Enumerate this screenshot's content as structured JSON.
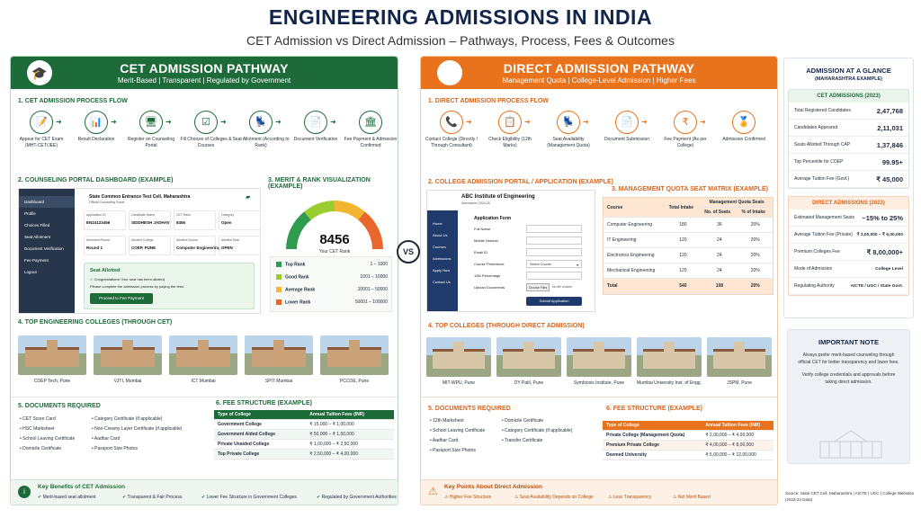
{
  "title": "ENGINEERING ADMISSIONS IN INDIA",
  "subtitle": "CET Admission vs Direct Admission – Pathways, Process, Fees & Outcomes",
  "vs": "VS",
  "cet": {
    "header_title": "CET ADMISSION PATHWAY",
    "header_sub": "Merit-Based | Transparent | Regulated by Government",
    "process_title": "1. CET ADMISSION PROCESS FLOW",
    "steps": [
      {
        "icon": "exam-icon",
        "label": "Appear for CET Exam (MHT-CET/JEE)"
      },
      {
        "icon": "chart-icon",
        "label": "Result Declaration"
      },
      {
        "icon": "monitor-icon",
        "label": "Register on Counseling Portal"
      },
      {
        "icon": "choices-icon",
        "label": "Fill Choices of Colleges & Courses"
      },
      {
        "icon": "seat-icon",
        "label": "Seat Allotment (According to Rank)"
      },
      {
        "icon": "document-icon",
        "label": "Document Verification"
      },
      {
        "icon": "bank-icon",
        "label": "Fee Payment & Admission Confirmed"
      }
    ],
    "dashboard_title": "2. COUNSELING PORTAL DASHBOARD (EXAMPLE)",
    "dashboard": {
      "org": "State Common Entrance Test Cell, Maharashtra",
      "org_sub": "Official Counseling Portal",
      "menu": [
        "Dashboard",
        "Profile",
        "Choices Filled",
        "Seat Allotment",
        "Document Verification",
        "Fee Payment",
        "Logout"
      ],
      "fields": [
        {
          "label": "Application ID",
          "value": "EN24123456"
        },
        {
          "label": "Candidate Name",
          "value": "SIDDHESH JADHAV"
        },
        {
          "label": "CET Rank",
          "value": "8456"
        },
        {
          "label": "Category",
          "value": "Open"
        },
        {
          "label": "Allotment Round",
          "value": "Round 1"
        },
        {
          "label": "Allotted College",
          "value": "COEP, PUNE"
        },
        {
          "label": "Allotted Course",
          "value": "Computer Engineering"
        },
        {
          "label": "Allotted Seat",
          "value": "OPEN"
        }
      ],
      "seat_title": "Seat Allotted",
      "seat_msg1": "Congratulations! Your seat has been allotted.",
      "seat_msg2": "Please complete the admission process by paying the fees.",
      "button": "Proceed to Fee Payment"
    },
    "merit_title": "3. MERIT & RANK VISUALIZATION (EXAMPLE)",
    "gauge": {
      "value": "8456",
      "label": "Your CET Rank",
      "min": "1",
      "max": "100000",
      "fraction": 0.08
    },
    "ranks": [
      {
        "name": "Top Rank",
        "range": "1 – 1000",
        "color": "#2e9b4e"
      },
      {
        "name": "Good Rank",
        "range": "1001 – 10000",
        "color": "#9acd32"
      },
      {
        "name": "Average Rank",
        "range": "10001 – 50000",
        "color": "#f2b632"
      },
      {
        "name": "Lower Rank",
        "range": "50001 – 100000",
        "color": "#e9662c"
      }
    ],
    "colleges_title": "4. TOP ENGINEERING COLLEGES (THROUGH CET)",
    "colleges": [
      "COEP Tech, Pune",
      "VJTI, Mumbai",
      "ICT Mumbai",
      "SPIT Mumbai",
      "PCCOE, Pune"
    ],
    "docs_title": "5. DOCUMENTS REQUIRED",
    "docs_left": [
      "CET Score Card",
      "HSC Marksheet",
      "School Leaving Certificate",
      "Domicile Certificate"
    ],
    "docs_right": [
      "Category Certificate (if applicable)",
      "Non-Creamy Layer Certificate (if applicable)",
      "Aadhar Card",
      "Passport Size Photos"
    ],
    "fee_title": "6. FEE STRUCTURE (EXAMPLE)",
    "fee_head": [
      "Type of College",
      "Annual Tuition Fees (INR)"
    ],
    "fees": [
      [
        "Government College",
        "₹ 15,000 – ₹ 1,00,000"
      ],
      [
        "Government Aided College",
        "₹ 50,000 – ₹ 1,50,000"
      ],
      [
        "Private Unaided College",
        "₹ 1,00,000 – ₹ 2,50,000"
      ],
      [
        "Top Private College",
        "₹ 2,50,000 – ₹ 4,00,000"
      ]
    ],
    "benefits_title": "Key Benefits of CET Admission",
    "benefits": [
      "Merit-based seat allotment",
      "Transparent & Fair Process",
      "Lower Fee Structure in Government Colleges",
      "Regulated by Government Authorities"
    ]
  },
  "direct": {
    "header_title": "DIRECT ADMISSION PATHWAY",
    "header_sub": "Management Quota | College-Level Admission | Higher Fees",
    "process_title": "1. DIRECT ADMISSION PROCESS FLOW",
    "steps": [
      {
        "icon": "phone-icon",
        "label": "Contact College (Directly / Through Consultant)"
      },
      {
        "icon": "clipboard-icon",
        "label": "Check Eligibility (12th Marks)"
      },
      {
        "icon": "seat-icon",
        "label": "Seat Availability (Management Quota)"
      },
      {
        "icon": "document-icon",
        "label": "Document Submission"
      },
      {
        "icon": "rupee-icon",
        "label": "Fee Payment (As per College)"
      },
      {
        "icon": "badge-icon",
        "label": "Admission Confirmed"
      }
    ],
    "portal_title": "2. COLLEGE ADMISSION PORTAL / APPLICATION (EXAMPLE)",
    "portal": {
      "college": "ABC Institute of Engineering",
      "session": "Admissions 2024-25",
      "menu": [
        "Home",
        "About Us",
        "Courses",
        "Admissions",
        "Apply Now",
        "Contact Us"
      ],
      "form_title": "Application Form",
      "fields": [
        "Full Name",
        "Mobile Number",
        "Email ID",
        "Course Preference",
        "12th Percentage",
        "Upload Documents"
      ],
      "select": "Select Course",
      "choose": "Choose Files",
      "nofile": "No file chosen",
      "submit": "Submit Application"
    },
    "matrix_title": "3. MANAGEMENT QUOTA SEAT MATRIX (EXAMPLE)",
    "matrix_head": [
      "Course",
      "Total Intake",
      "Management Quota Seats",
      "No. of Seats",
      "% of Intake"
    ],
    "matrix": [
      [
        "Computer Engineering",
        "180",
        "36",
        "20%"
      ],
      [
        "IT Engineering",
        "120",
        "24",
        "20%"
      ],
      [
        "Electronics Engineering",
        "120",
        "24",
        "20%"
      ],
      [
        "Mechanical Engineering",
        "120",
        "24",
        "20%"
      ],
      [
        "Total",
        "540",
        "108",
        "20%"
      ]
    ],
    "colleges_title": "4. TOP COLLEGES (THROUGH DIRECT ADMISSION)",
    "colleges": [
      "MIT-WPU, Pune",
      "DY Patil, Pune",
      "Symbiosis Institute, Pune",
      "Mumbai University Inst. of Engg.",
      "JSPM, Pune"
    ],
    "docs_title": "5. DOCUMENTS REQUIRED",
    "docs_left": [
      "12th Marksheet",
      "School Leaving Certificate",
      "Aadhar Card",
      "Passport Size Photos"
    ],
    "docs_right": [
      "Domicile Certificate",
      "Category Certificate (if applicable)",
      "Transfer Certificate"
    ],
    "fee_title": "6. FEE STRUCTURE (EXAMPLE)",
    "fee_head": [
      "Type of College",
      "Annual Tuition Fees (INR)"
    ],
    "fees": [
      [
        "Private College (Management Quota)",
        "₹ 2,00,000 – ₹ 4,00,000"
      ],
      [
        "Premium Private College",
        "₹ 4,00,000 – ₹ 8,00,000"
      ],
      [
        "Deemed University",
        "₹ 5,00,000 – ₹ 12,00,000"
      ]
    ],
    "points_title": "Key Points About Direct Admission",
    "points": [
      "Higher Fee Structure",
      "Seat Availability Depends on College",
      "Less Transparency",
      "Not Merit Based"
    ]
  },
  "glance": {
    "title": "ADMISSION AT A GLANCE",
    "sub": "(MAHARASHTRA EXAMPLE)",
    "cet_title": "CET ADMISSIONS (2023)",
    "cet_rows": [
      [
        "Total Registered Candidates",
        "2,47,768"
      ],
      [
        "Candidates Appeared",
        "2,11,031"
      ],
      [
        "Seats Allotted Through CAP",
        "1,37,846"
      ],
      [
        "Top Percentile for COEP",
        "99.95+"
      ],
      [
        "Average Tuition Fee (Govt.)",
        "₹ 45,000"
      ]
    ],
    "direct_title": "DIRECT ADMISSIONS (2023)",
    "direct_rows": [
      [
        "Estimated Management Seats",
        "~15% to 25%"
      ],
      [
        "Average Tuition Fee (Private)",
        "₹ 3,00,000 – ₹ 6,00,000"
      ],
      [
        "Premium Colleges Fee",
        "₹ 8,00,000+"
      ],
      [
        "Mode of Admission",
        "College Level"
      ],
      [
        "Regulating Authority",
        "AICTE / UGC / State Govt."
      ]
    ],
    "note_title": "IMPORTANT NOTE",
    "note1": "Always prefer merit-based counseling through official CET for better transparency and lower fees.",
    "note2": "Verify college credentials and approvals before taking direct admission.",
    "source": "Source: State CET Cell, Maharashtra | AICTE | UGC | College Websites (2023-24 Data)"
  },
  "colors": {
    "green": "#1e6b3a",
    "orange": "#e8731c",
    "navy": "#12254a"
  }
}
